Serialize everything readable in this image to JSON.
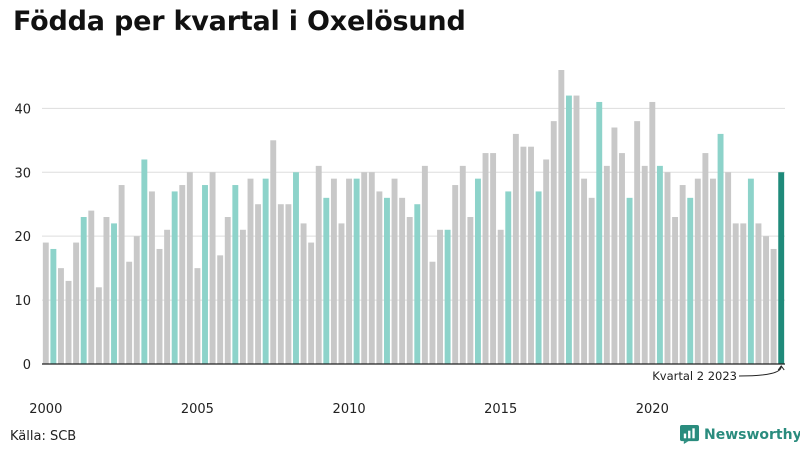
{
  "title": "Födda per kvartal i Oxelösund",
  "source": "Källa: SCB",
  "brand": {
    "name": "Newsworthy"
  },
  "colors": {
    "bar": "#c8c8c8",
    "highlight_quarter": "#8dd3ca",
    "latest": "#1f8a7a",
    "grid": "#dddddd",
    "axis": "#222222",
    "brand": "#2a8c7e"
  },
  "chart_data": {
    "type": "bar",
    "x_tick_labels": [
      "2000",
      "2005",
      "2010",
      "2015",
      "2020"
    ],
    "y_ticks": [
      0,
      10,
      20,
      30,
      40
    ],
    "ylim": [
      0,
      46
    ],
    "grid": true,
    "start_year": 2000,
    "highlighted_quarter": 2,
    "annotation": "Kvartal 2 2023",
    "values": [
      19,
      18,
      15,
      13,
      19,
      23,
      24,
      12,
      23,
      22,
      28,
      16,
      20,
      32,
      27,
      18,
      21,
      27,
      28,
      30,
      15,
      28,
      30,
      17,
      23,
      28,
      21,
      29,
      25,
      29,
      35,
      25,
      25,
      30,
      22,
      19,
      31,
      26,
      29,
      22,
      29,
      29,
      30,
      30,
      27,
      26,
      29,
      26,
      23,
      25,
      31,
      16,
      21,
      21,
      28,
      31,
      23,
      29,
      33,
      33,
      21,
      27,
      36,
      34,
      34,
      27,
      32,
      38,
      46,
      42,
      42,
      29,
      26,
      41,
      31,
      37,
      33,
      26,
      38,
      31,
      41,
      31,
      30,
      23,
      28,
      26,
      29,
      33,
      29,
      36,
      30,
      22,
      22,
      29,
      22,
      20,
      18,
      30
    ]
  }
}
